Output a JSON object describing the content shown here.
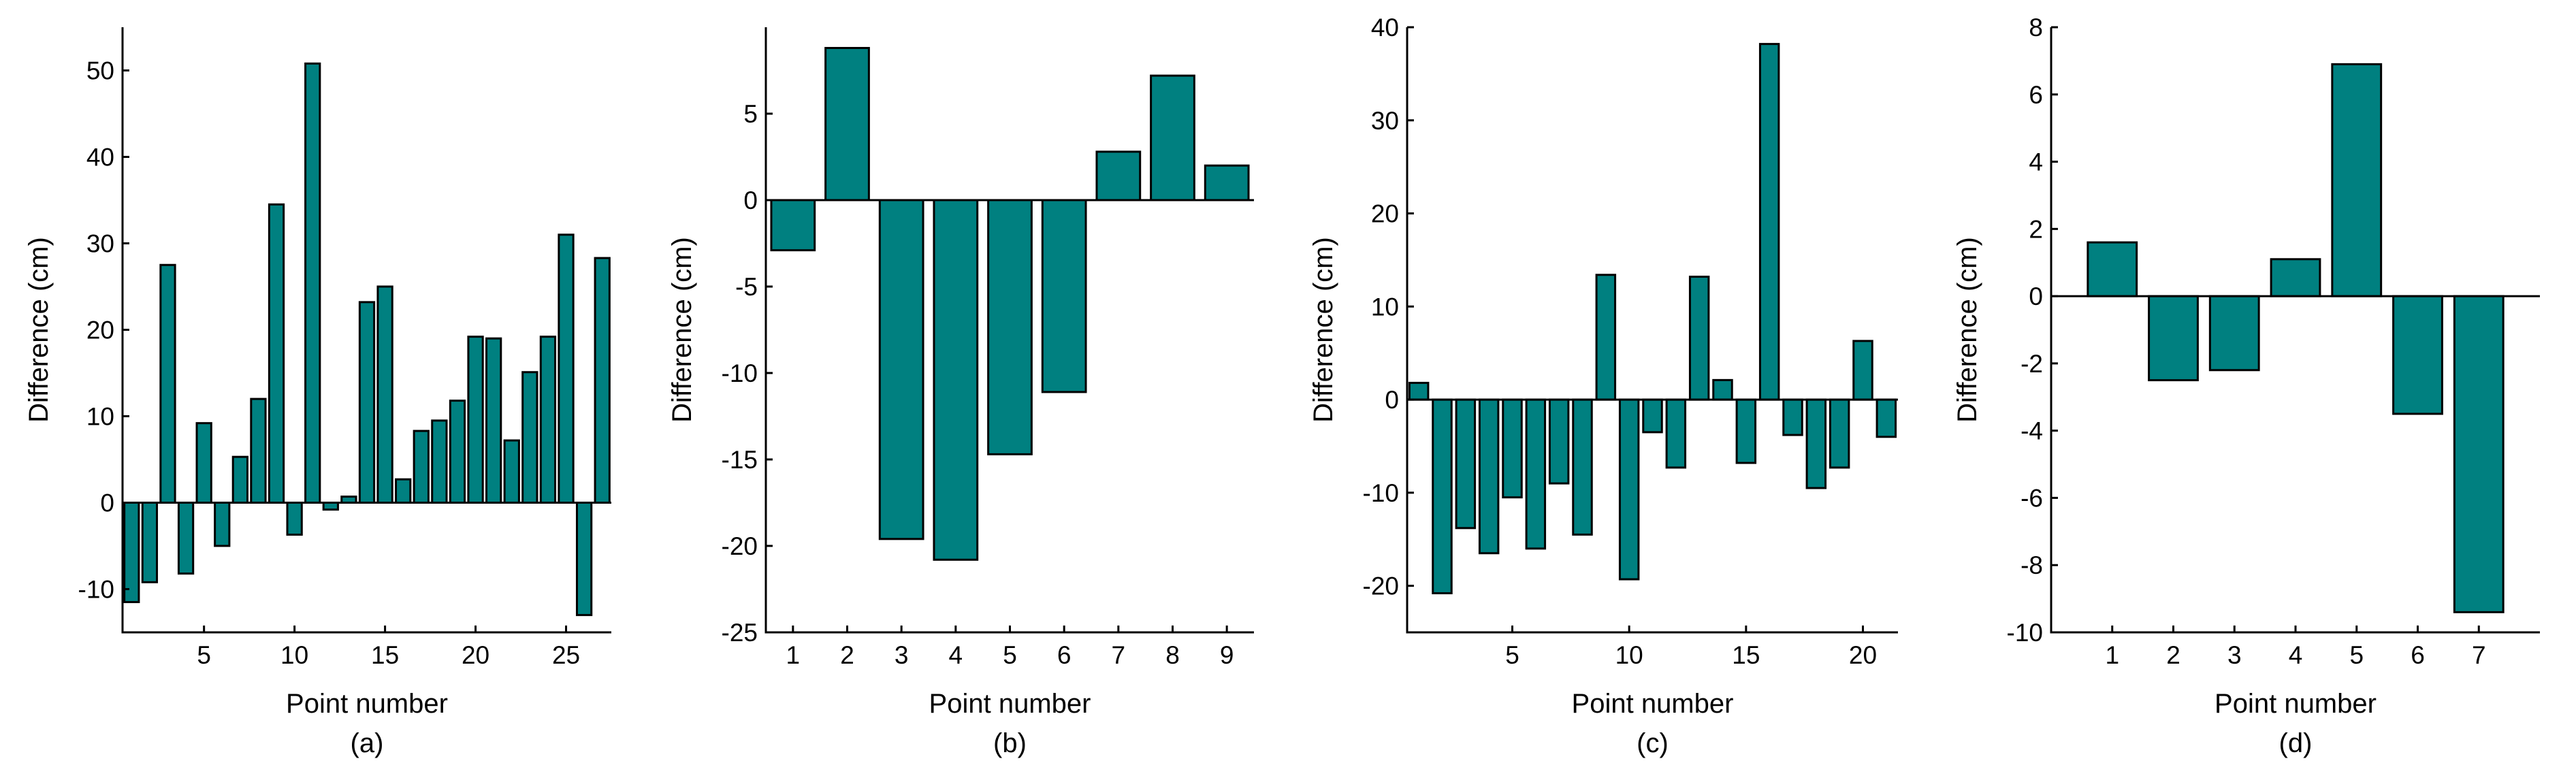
{
  "bar_color": "#008080",
  "chart_data": [
    {
      "type": "bar",
      "title": "",
      "caption": "(a)",
      "xlabel": "Point number",
      "ylabel": "Difference (cm)",
      "xlim": [
        0.5,
        27.5
      ],
      "ylim": [
        -15,
        55
      ],
      "xticks": [
        5,
        10,
        15,
        20,
        25
      ],
      "yticks": [
        -10,
        0,
        10,
        20,
        30,
        40,
        50
      ],
      "categories": [
        1,
        2,
        3,
        4,
        5,
        6,
        7,
        8,
        9,
        10,
        11,
        12,
        13,
        14,
        15,
        16,
        17,
        18,
        19,
        20,
        21,
        22,
        23,
        24,
        25,
        26,
        27
      ],
      "values": [
        -11.5,
        -9.2,
        27.5,
        -8.2,
        9.2,
        -5.0,
        5.3,
        12.0,
        34.5,
        -3.7,
        50.8,
        -0.8,
        0.7,
        23.2,
        25.0,
        2.7,
        8.3,
        9.5,
        11.8,
        19.2,
        19.0,
        7.2,
        15.1,
        19.2,
        31.0,
        -13.0,
        28.3
      ]
    },
    {
      "type": "bar",
      "title": "",
      "caption": "(b)",
      "xlabel": "Point number",
      "ylabel": "Difference (cm)",
      "xlim": [
        0.5,
        9.5
      ],
      "ylim": [
        -25,
        10
      ],
      "xticks": [
        1,
        2,
        3,
        4,
        5,
        6,
        7,
        8,
        9
      ],
      "yticks": [
        -25,
        -20,
        -15,
        -10,
        -5,
        0,
        5
      ],
      "categories": [
        1,
        2,
        3,
        4,
        5,
        6,
        7,
        8,
        9
      ],
      "values": [
        -2.9,
        8.8,
        -19.6,
        -20.8,
        -14.7,
        -11.1,
        2.8,
        7.2,
        2.0
      ]
    },
    {
      "type": "bar",
      "title": "",
      "caption": "(c)",
      "xlabel": "Point number",
      "ylabel": "Difference (cm)",
      "xlim": [
        0.5,
        21.5
      ],
      "ylim": [
        -25,
        40
      ],
      "xticks": [
        5,
        10,
        15,
        20
      ],
      "yticks": [
        -20,
        -10,
        0,
        10,
        20,
        30,
        40
      ],
      "categories": [
        1,
        2,
        3,
        4,
        5,
        6,
        7,
        8,
        9,
        10,
        11,
        12,
        13,
        14,
        15,
        16,
        17,
        18,
        19,
        20,
        21
      ],
      "values": [
        1.8,
        -20.8,
        -13.8,
        -16.5,
        -10.5,
        -16.0,
        -9.0,
        -14.5,
        13.4,
        -19.3,
        -3.5,
        -7.3,
        13.2,
        2.1,
        -6.8,
        38.2,
        -3.8,
        -9.5,
        -7.3,
        6.3,
        -4.0
      ]
    },
    {
      "type": "bar",
      "title": "",
      "caption": "(d)",
      "xlabel": "Point number",
      "ylabel": "Difference (cm)",
      "xlim": [
        0,
        8
      ],
      "ylim": [
        -10,
        8
      ],
      "xticks": [
        1,
        2,
        3,
        4,
        5,
        6,
        7
      ],
      "yticks": [
        -10,
        -8,
        -6,
        -4,
        -2,
        0,
        2,
        4,
        6,
        8
      ],
      "categories": [
        1,
        2,
        3,
        4,
        5,
        6,
        7
      ],
      "values": [
        1.6,
        -2.5,
        -2.2,
        1.1,
        6.9,
        -3.5,
        -9.4
      ]
    }
  ]
}
